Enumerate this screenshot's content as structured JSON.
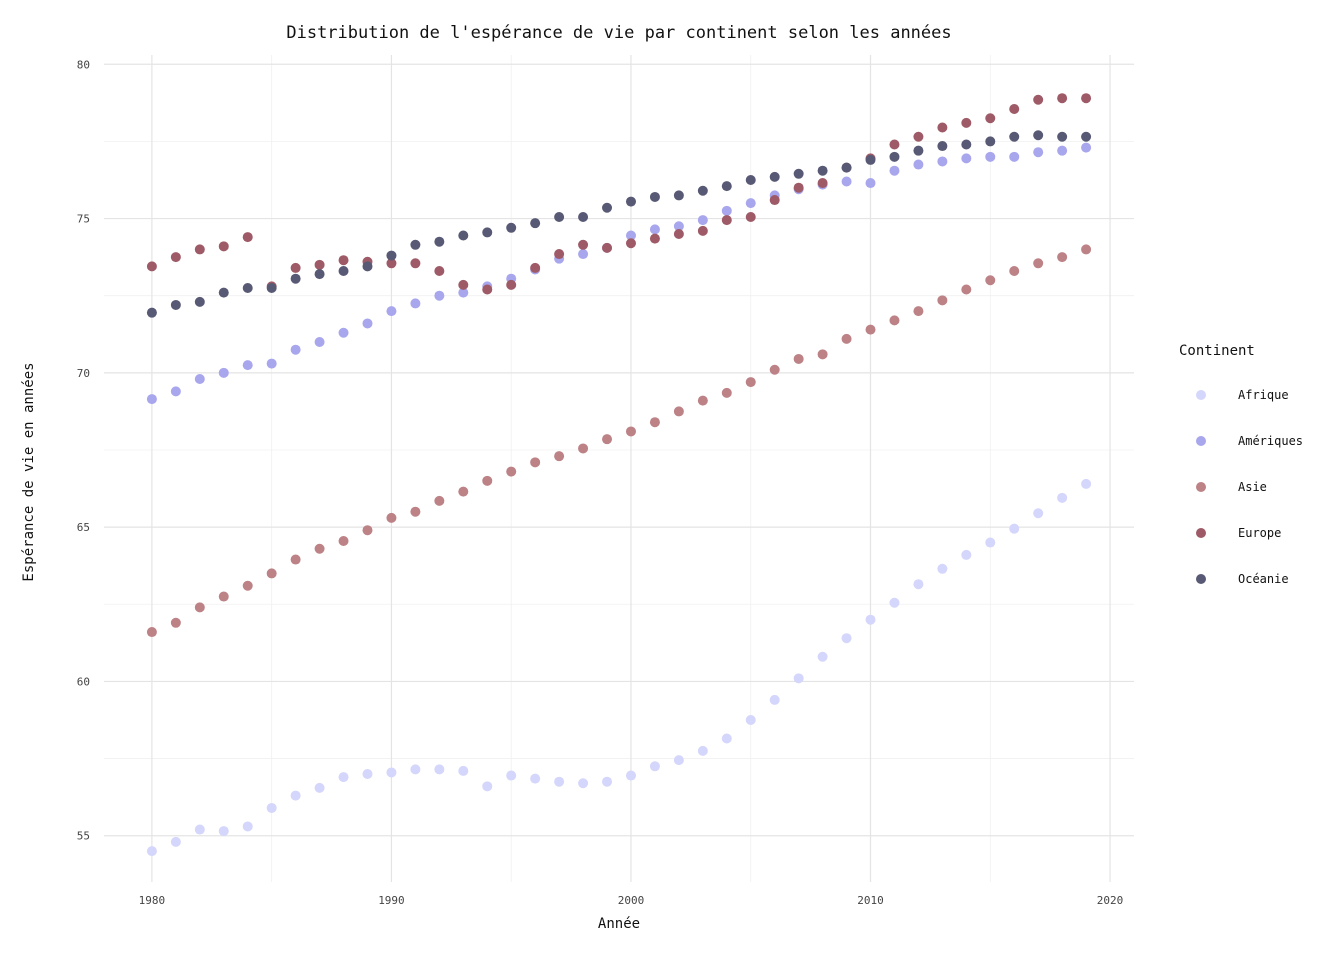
{
  "chart_data": {
    "type": "scatter",
    "title": "Distribution de l'espérance de vie par continent selon les années",
    "xlabel": "Année",
    "ylabel": "Espérance de vie en années",
    "xlim": [
      1978,
      2021
    ],
    "ylim": [
      53.5,
      80.3
    ],
    "xticks": [
      1980,
      1990,
      2000,
      2010,
      2020
    ],
    "yticks": [
      55,
      60,
      65,
      70,
      75,
      80
    ],
    "grid": true,
    "legend": {
      "title": "Continent",
      "position": "right"
    },
    "x": [
      1980,
      1981,
      1982,
      1983,
      1984,
      1985,
      1986,
      1987,
      1988,
      1989,
      1990,
      1991,
      1992,
      1993,
      1994,
      1995,
      1996,
      1997,
      1998,
      1999,
      2000,
      2001,
      2002,
      2003,
      2004,
      2005,
      2006,
      2007,
      2008,
      2009,
      2010,
      2011,
      2012,
      2013,
      2014,
      2015,
      2016,
      2017,
      2018,
      2019
    ],
    "series": [
      {
        "name": "Afrique",
        "color": "#d4d6fb",
        "values": [
          54.5,
          54.8,
          55.2,
          55.15,
          55.3,
          55.9,
          56.3,
          56.55,
          56.9,
          57.0,
          57.05,
          57.15,
          57.15,
          57.1,
          56.6,
          56.95,
          56.85,
          56.75,
          56.7,
          56.75,
          56.95,
          57.25,
          57.45,
          57.75,
          58.15,
          58.75,
          59.4,
          60.1,
          60.8,
          61.4,
          62.0,
          62.55,
          63.15,
          63.65,
          64.1,
          64.5,
          64.95,
          65.45,
          65.95,
          66.4
        ]
      },
      {
        "name": "Amériques",
        "color": "#a8a6ed",
        "values": [
          69.15,
          69.4,
          69.8,
          70.0,
          70.25,
          70.3,
          70.75,
          71.0,
          71.3,
          71.6,
          72.0,
          72.25,
          72.5,
          72.6,
          72.8,
          73.05,
          73.35,
          73.7,
          73.85,
          74.05,
          74.45,
          74.65,
          74.75,
          74.95,
          75.25,
          75.5,
          75.75,
          75.95,
          76.1,
          76.2,
          76.15,
          76.55,
          76.75,
          76.85,
          76.95,
          77.0,
          77.0,
          77.15,
          77.2,
          77.3
        ]
      },
      {
        "name": "Asie",
        "color": "#bc8286",
        "values": [
          61.6,
          61.9,
          62.4,
          62.75,
          63.1,
          63.5,
          63.95,
          64.3,
          64.55,
          64.9,
          65.3,
          65.5,
          65.85,
          66.15,
          66.5,
          66.8,
          67.1,
          67.3,
          67.55,
          67.85,
          68.1,
          68.4,
          68.75,
          69.1,
          69.35,
          69.7,
          70.1,
          70.45,
          70.6,
          71.1,
          71.4,
          71.7,
          72.0,
          72.35,
          72.7,
          73.0,
          73.3,
          73.55,
          73.75,
          74.0
        ]
      },
      {
        "name": "Europe",
        "color": "#9e5a66",
        "values": [
          73.45,
          73.75,
          74.0,
          74.1,
          74.4,
          72.8,
          73.4,
          73.5,
          73.65,
          73.6,
          73.55,
          73.55,
          73.3,
          72.85,
          72.7,
          72.85,
          73.4,
          73.85,
          74.15,
          74.05,
          74.2,
          74.35,
          74.5,
          74.6,
          74.95,
          75.05,
          75.6,
          76.0,
          76.15,
          76.65,
          76.95,
          77.4,
          77.65,
          77.95,
          78.1,
          78.25,
          78.55,
          78.85,
          78.9,
          78.9
        ]
      },
      {
        "name": "Océanie",
        "color": "#585a75",
        "values": [
          71.95,
          72.2,
          72.3,
          72.6,
          72.75,
          72.75,
          73.05,
          73.2,
          73.3,
          73.45,
          73.8,
          74.15,
          74.25,
          74.45,
          74.55,
          74.7,
          74.85,
          75.05,
          75.05,
          75.35,
          75.55,
          75.7,
          75.75,
          75.9,
          76.05,
          76.25,
          76.35,
          76.45,
          76.55,
          76.65,
          76.9,
          77.0,
          77.2,
          77.35,
          77.4,
          77.5,
          77.65,
          77.7,
          77.65,
          77.65
        ]
      }
    ]
  }
}
